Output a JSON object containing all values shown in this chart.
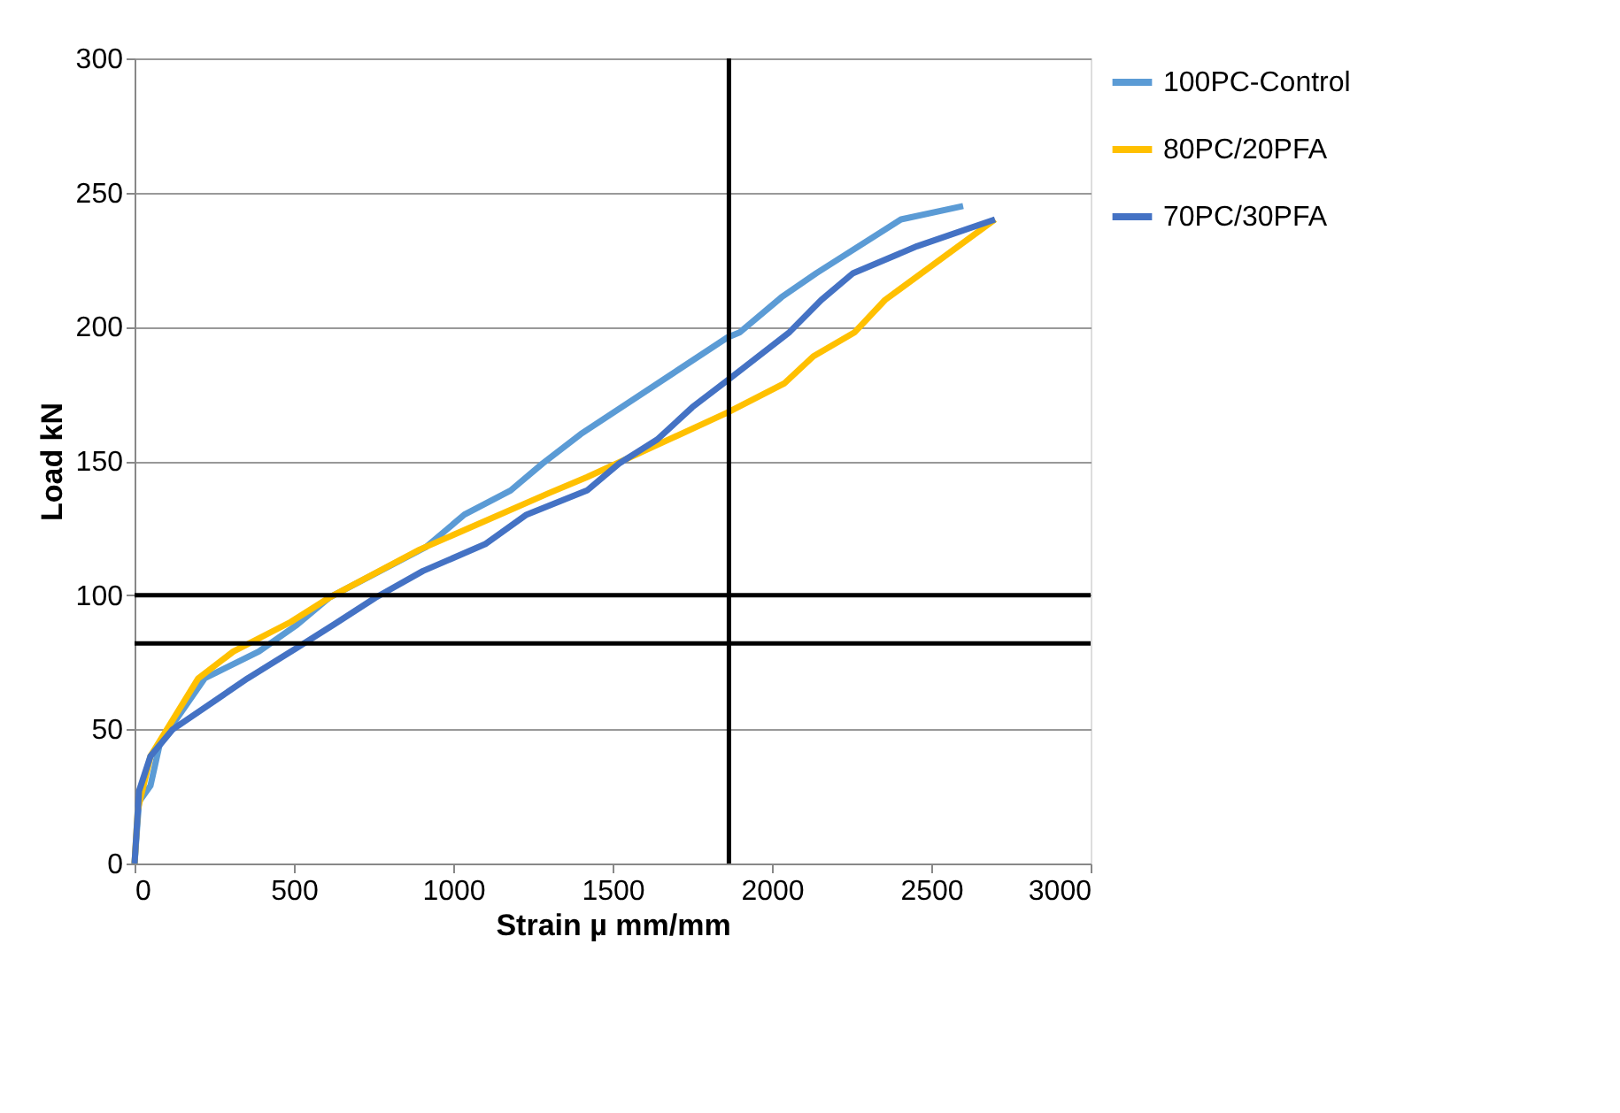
{
  "chart_data": {
    "type": "line",
    "xlabel": "Strain µ mm/mm",
    "ylabel": "Load kN",
    "xlim": [
      0,
      3000
    ],
    "xticks": [
      0,
      500,
      1000,
      1500,
      2000,
      2500,
      3000
    ],
    "ylim": [
      0,
      300
    ],
    "yticks": [
      0,
      50,
      100,
      150,
      200,
      250,
      300
    ],
    "grid": "y",
    "legend": "right",
    "marker": "none",
    "line_style": "solid",
    "series": [
      {
        "name": "100PC-Control",
        "color": "#5b9bd5",
        "x": [
          0,
          14,
          50,
          80,
          220,
          390,
          510,
          610,
          915,
          1035,
          1180,
          1280,
          1400,
          1860,
          1900,
          2030,
          2140,
          2405,
          2600
        ],
        "values": [
          0,
          23,
          29,
          45,
          69,
          79,
          89,
          99,
          118,
          130,
          139,
          149,
          160,
          196,
          198,
          211,
          220,
          240,
          245
        ]
      },
      {
        "name": "80PC/20PFA",
        "color": "#ffc000",
        "x": [
          0,
          10,
          50,
          200,
          310,
          490,
          610,
          895,
          1300,
          1420,
          1860,
          2040,
          2130,
          2260,
          2355,
          2700
        ],
        "values": [
          0,
          20,
          40,
          69,
          79,
          90,
          99,
          117,
          138,
          144,
          168,
          179,
          189,
          198,
          210,
          240
        ]
      },
      {
        "name": "70PC/30PFA",
        "color": "#4472c4",
        "x": [
          0,
          14,
          50,
          120,
          355,
          505,
          625,
          755,
          905,
          1100,
          1230,
          1420,
          1520,
          1640,
          1750,
          1860,
          2055,
          2155,
          2255,
          2455,
          2700
        ],
        "values": [
          0,
          27,
          40,
          50,
          69,
          80,
          89,
          99,
          109,
          119,
          130,
          139,
          149,
          158,
          170,
          180,
          198,
          210,
          220,
          230,
          240
        ]
      }
    ],
    "ref_lines": [
      {
        "axis": "y",
        "value": 100,
        "color": "#000000"
      },
      {
        "axis": "y",
        "value": 82,
        "color": "#000000"
      },
      {
        "axis": "x",
        "value": 1865,
        "color": "#000000"
      }
    ]
  }
}
